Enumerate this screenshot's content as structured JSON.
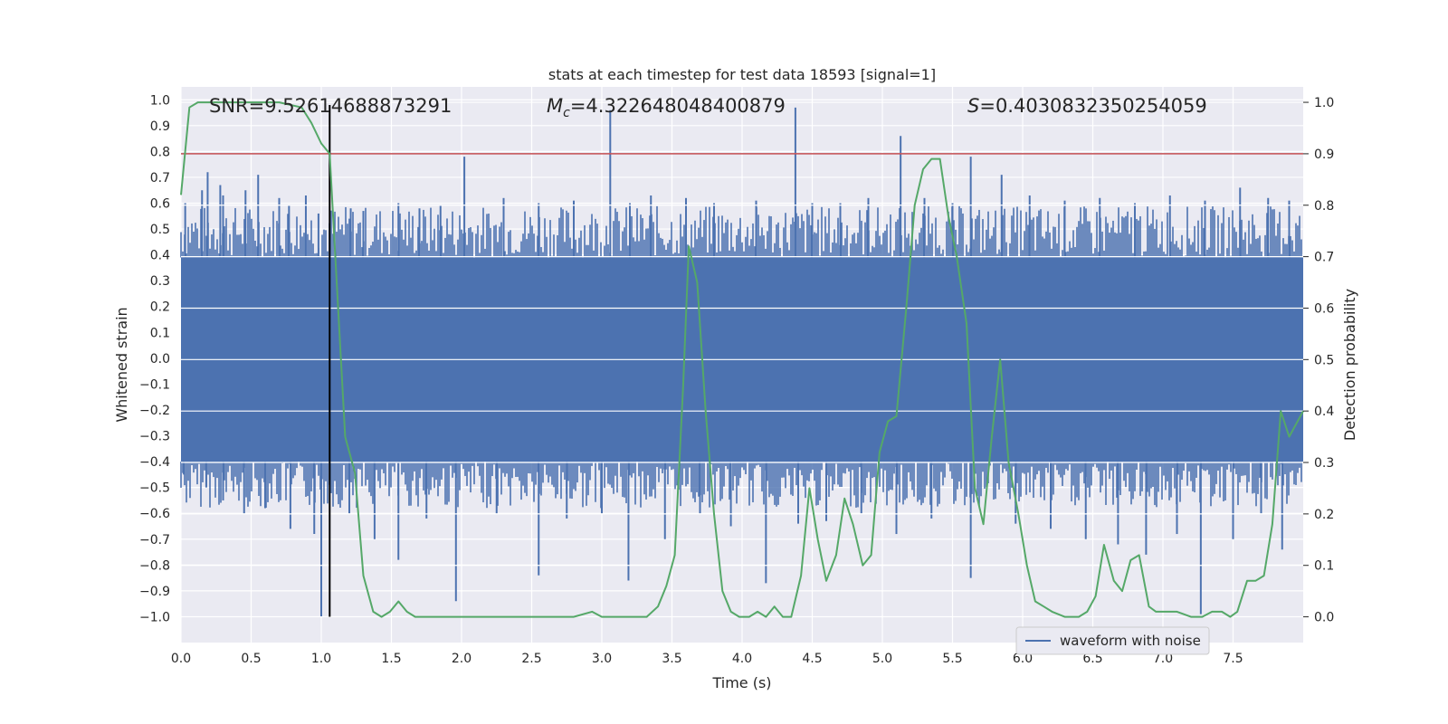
{
  "chart_data": {
    "type": "line",
    "title": "stats at each timestep for test data 18593 [signal=1]",
    "xlabel": "Time (s)",
    "ylabel_left": "Whitened strain",
    "ylabel_right": "Detection probability",
    "xlim": [
      0.0,
      8.0
    ],
    "ylim_left": [
      -1.1,
      1.05
    ],
    "ylim_right": [
      -0.05,
      1.03
    ],
    "x_ticks": [
      "0.0",
      "0.5",
      "1.0",
      "1.5",
      "2.0",
      "2.5",
      "3.0",
      "3.5",
      "4.0",
      "4.5",
      "5.0",
      "5.5",
      "6.0",
      "6.5",
      "7.0",
      "7.5"
    ],
    "y_left_ticks": [
      "1.0",
      "0.9",
      "0.8",
      "0.7",
      "0.6",
      "0.5",
      "0.4",
      "0.3",
      "0.2",
      "0.1",
      "0.0",
      "-0.1",
      "-0.2",
      "-0.3",
      "-0.4",
      "-0.5",
      "-0.6",
      "-0.7",
      "-0.8",
      "-0.9",
      "-1.0"
    ],
    "y_right_ticks": [
      "1.0",
      "0.9",
      "0.8",
      "0.7",
      "0.6",
      "0.5",
      "0.4",
      "0.3",
      "0.2",
      "0.1",
      "0.0"
    ],
    "grid": true,
    "legend": {
      "placement": "lower-right",
      "entries": [
        "waveform with noise"
      ]
    },
    "annotations": {
      "snr": "SNR=9.52614688873291",
      "mc_symbol": "M",
      "mc_sub": "c",
      "mc_value": "=4.322648048400879",
      "s_symbol": "S",
      "s_value": "=0.4030832350254059"
    },
    "threshold": {
      "axis": "right",
      "value": 0.9,
      "color": "#c44e52"
    },
    "vertical_marker": {
      "x": 1.06,
      "y_range": [
        -1.0,
        0.98
      ],
      "color": "#000000"
    },
    "waveform": {
      "name": "waveform with noise",
      "color": "#4c72b0",
      "core_band": [
        -0.4,
        0.39
      ],
      "spikes_up": [
        [
          0.03,
          0.6
        ],
        [
          0.15,
          0.65
        ],
        [
          0.19,
          0.72
        ],
        [
          0.28,
          0.67
        ],
        [
          0.3,
          0.63
        ],
        [
          0.46,
          0.65
        ],
        [
          0.55,
          0.71
        ],
        [
          0.7,
          0.62
        ],
        [
          0.77,
          0.59
        ],
        [
          0.89,
          0.63
        ],
        [
          0.98,
          0.56
        ],
        [
          1.21,
          0.58
        ],
        [
          1.3,
          0.57
        ],
        [
          1.55,
          0.6
        ],
        [
          1.7,
          0.58
        ],
        [
          1.85,
          0.59
        ],
        [
          2.02,
          0.78
        ],
        [
          2.3,
          0.62
        ],
        [
          2.55,
          0.6
        ],
        [
          2.8,
          0.61
        ],
        [
          3.06,
          0.96
        ],
        [
          3.2,
          0.6
        ],
        [
          3.35,
          0.63
        ],
        [
          3.6,
          0.62
        ],
        [
          3.8,
          0.6
        ],
        [
          4.1,
          0.61
        ],
        [
          4.38,
          0.97
        ],
        [
          4.5,
          0.6
        ],
        [
          4.7,
          0.6
        ],
        [
          4.9,
          0.62
        ],
        [
          5.13,
          0.86
        ],
        [
          5.3,
          0.62
        ],
        [
          5.5,
          0.6
        ],
        [
          5.63,
          0.78
        ],
        [
          5.85,
          0.71
        ],
        [
          6.05,
          0.63
        ],
        [
          6.3,
          0.61
        ],
        [
          6.55,
          0.62
        ],
        [
          6.8,
          0.6
        ],
        [
          7.05,
          0.63
        ],
        [
          7.3,
          0.61
        ],
        [
          7.55,
          0.66
        ],
        [
          7.75,
          0.62
        ],
        [
          7.9,
          0.61
        ]
      ],
      "spikes_down": [
        [
          0.02,
          -0.45
        ],
        [
          0.18,
          -0.5
        ],
        [
          0.3,
          -0.55
        ],
        [
          0.45,
          -0.6
        ],
        [
          0.6,
          -0.58
        ],
        [
          0.78,
          -0.66
        ],
        [
          0.95,
          -0.68
        ],
        [
          1.0,
          -1.0
        ],
        [
          1.2,
          -0.6
        ],
        [
          1.38,
          -0.7
        ],
        [
          1.55,
          -0.78
        ],
        [
          1.75,
          -0.62
        ],
        [
          1.96,
          -0.94
        ],
        [
          2.25,
          -0.6
        ],
        [
          2.55,
          -0.84
        ],
        [
          2.75,
          -0.62
        ],
        [
          3.0,
          -0.6
        ],
        [
          3.19,
          -0.86
        ],
        [
          3.45,
          -0.7
        ],
        [
          3.7,
          -0.6
        ],
        [
          3.92,
          -0.65
        ],
        [
          4.17,
          -0.87
        ],
        [
          4.4,
          -0.64
        ],
        [
          4.6,
          -0.63
        ],
        [
          4.85,
          -0.6
        ],
        [
          5.1,
          -0.68
        ],
        [
          5.35,
          -0.62
        ],
        [
          5.63,
          -0.85
        ],
        [
          5.95,
          -0.64
        ],
        [
          6.2,
          -0.66
        ],
        [
          6.45,
          -0.7
        ],
        [
          6.68,
          -0.72
        ],
        [
          6.88,
          -0.76
        ],
        [
          7.1,
          -0.68
        ],
        [
          7.27,
          -0.99
        ],
        [
          7.5,
          -0.7
        ],
        [
          7.7,
          -0.6
        ],
        [
          7.85,
          -0.74
        ]
      ]
    },
    "detection_probability": {
      "color": "#55a868",
      "x": [
        0.0,
        0.06,
        0.12,
        0.3,
        0.5,
        0.7,
        0.86,
        0.93,
        1.0,
        1.06,
        1.1,
        1.17,
        1.24,
        1.3,
        1.37,
        1.43,
        1.49,
        1.55,
        1.61,
        1.67,
        1.73,
        1.8,
        1.86,
        1.92,
        2.0,
        2.2,
        2.4,
        2.6,
        2.8,
        2.93,
        3.0,
        3.1,
        3.2,
        3.32,
        3.4,
        3.46,
        3.52,
        3.58,
        3.62,
        3.68,
        3.74,
        3.8,
        3.86,
        3.92,
        3.98,
        4.05,
        4.11,
        4.17,
        4.23,
        4.29,
        4.35,
        4.42,
        4.48,
        4.54,
        4.6,
        4.67,
        4.73,
        4.79,
        4.86,
        4.92,
        4.98,
        5.04,
        5.1,
        5.17,
        5.23,
        5.29,
        5.35,
        5.41,
        5.47,
        5.53,
        5.6,
        5.66,
        5.72,
        5.78,
        5.84,
        5.9,
        5.97,
        6.03,
        6.09,
        6.15,
        6.21,
        6.3,
        6.4,
        6.46,
        6.52,
        6.58,
        6.65,
        6.71,
        6.77,
        6.83,
        6.9,
        6.95,
        7.02,
        7.1,
        7.2,
        7.28,
        7.35,
        7.42,
        7.48,
        7.53,
        7.6,
        7.66,
        7.72,
        7.78,
        7.84,
        7.9,
        8.0
      ],
      "y": [
        0.82,
        0.99,
        1.0,
        1.0,
        1.0,
        1.0,
        0.99,
        0.96,
        0.92,
        0.9,
        0.7,
        0.35,
        0.28,
        0.08,
        0.01,
        0.0,
        0.01,
        0.03,
        0.01,
        0.0,
        0.0,
        0.0,
        0.0,
        0.0,
        0.0,
        0.0,
        0.0,
        0.0,
        0.0,
        0.01,
        0.0,
        0.0,
        0.0,
        0.0,
        0.02,
        0.06,
        0.12,
        0.45,
        0.72,
        0.65,
        0.4,
        0.2,
        0.05,
        0.01,
        0.0,
        0.0,
        0.01,
        0.0,
        0.02,
        0.0,
        0.0,
        0.08,
        0.25,
        0.15,
        0.07,
        0.12,
        0.23,
        0.18,
        0.1,
        0.12,
        0.32,
        0.38,
        0.39,
        0.6,
        0.8,
        0.87,
        0.89,
        0.89,
        0.78,
        0.7,
        0.57,
        0.25,
        0.18,
        0.35,
        0.5,
        0.3,
        0.2,
        0.1,
        0.03,
        0.02,
        0.01,
        0.0,
        0.0,
        0.01,
        0.04,
        0.14,
        0.07,
        0.05,
        0.11,
        0.12,
        0.02,
        0.01,
        0.01,
        0.01,
        0.0,
        0.0,
        0.01,
        0.01,
        0.0,
        0.01,
        0.07,
        0.07,
        0.08,
        0.18,
        0.4,
        0.35,
        0.4
      ]
    }
  }
}
